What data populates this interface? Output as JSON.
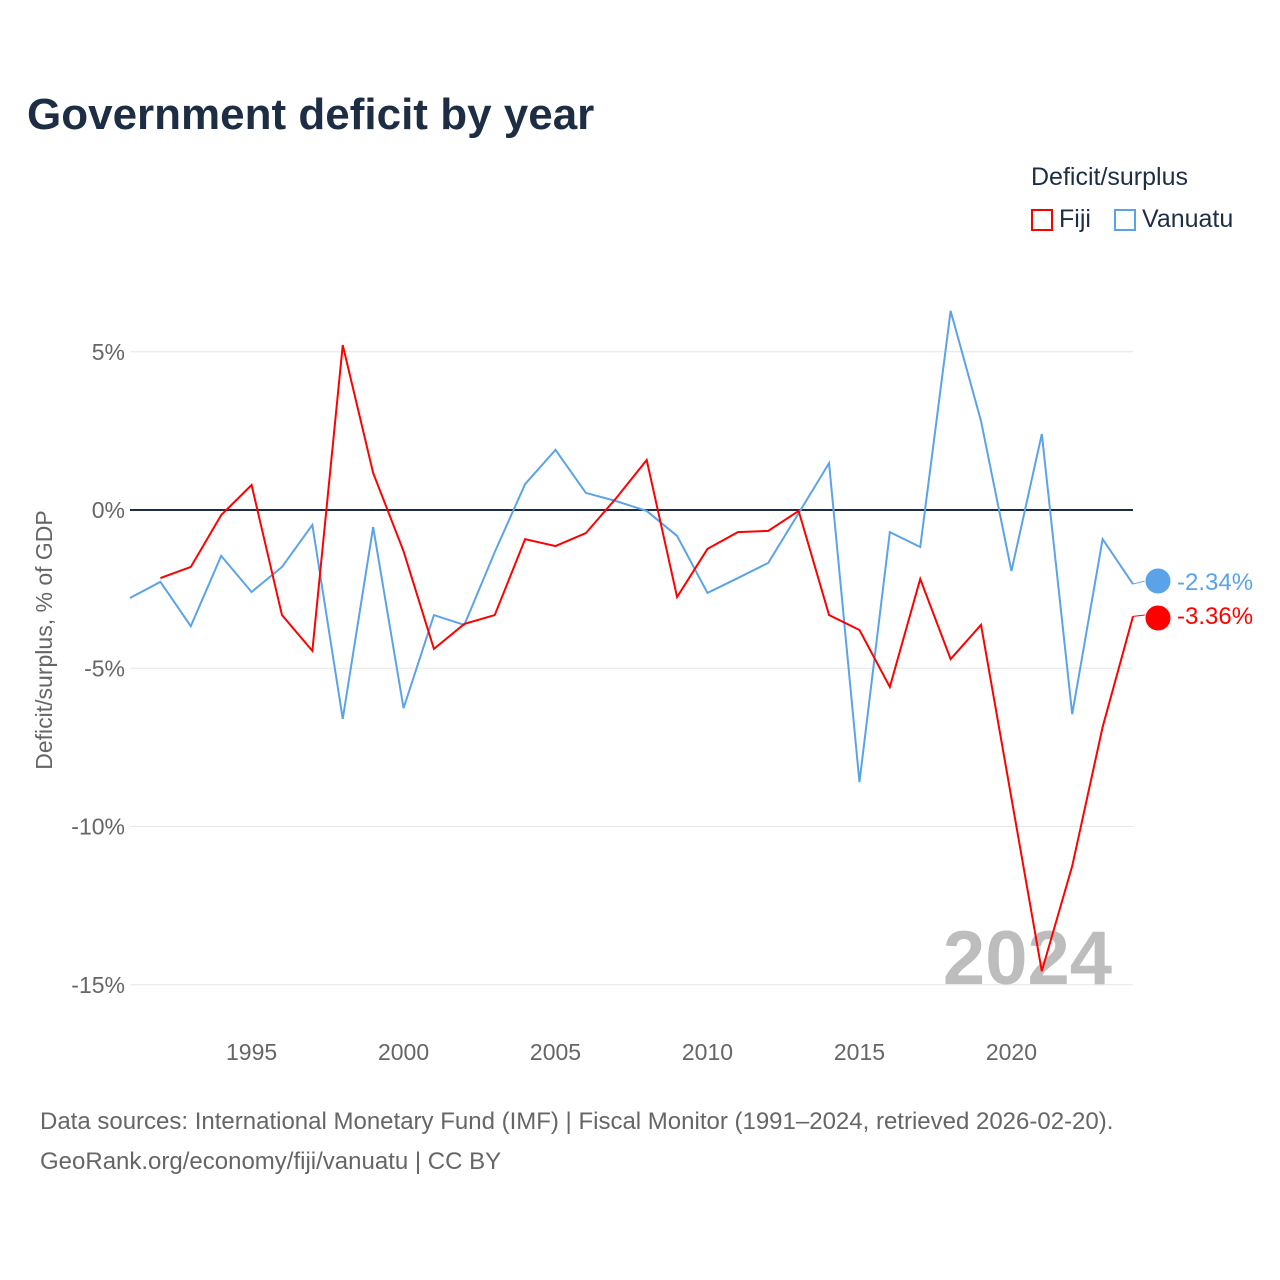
{
  "title": "Government deficit by year",
  "legend": {
    "title": "Deficit/surplus",
    "items": [
      "Fiji",
      "Vanuatu"
    ]
  },
  "footer": {
    "line1": "Data sources: International Monetary Fund (IMF) | Fiscal Monitor (1991–2024, retrieved 2026-02-20).",
    "line2": "GeoRank.org/economy/fiji/vanuatu | CC BY"
  },
  "chart_data": {
    "type": "line",
    "title": "Government deficit by year",
    "xlabel": "",
    "ylabel": "Deficit/surplus, % of GDP",
    "xlim": [
      1991,
      2024
    ],
    "ylim": [
      -16,
      7
    ],
    "x_ticks": [
      1995,
      2000,
      2005,
      2010,
      2015,
      2020
    ],
    "y_ticks": [
      5,
      0,
      -5,
      -10,
      -15
    ],
    "y_tick_labels": [
      "5%",
      "0%",
      "-5%",
      "-10%",
      "-15%"
    ],
    "year_label": "2024",
    "series": [
      {
        "name": "Fiji",
        "color": "#ff0000",
        "end_label": "-3.36%",
        "start": 1992,
        "values": [
          -2.15,
          -1.8,
          -0.16,
          0.79,
          -3.32,
          -4.45,
          5.21,
          1.17,
          -1.3,
          -4.39,
          -3.6,
          -3.32,
          -0.92,
          -1.14,
          -0.73,
          0.38,
          1.58,
          -2.75,
          -1.23,
          -0.7,
          -0.66,
          -0.03,
          -3.32,
          -3.79,
          -5.59,
          -2.18,
          -4.71,
          -3.63,
          -9.1,
          -14.57,
          -11.25,
          -6.86,
          -3.36
        ]
      },
      {
        "name": "Vanuatu",
        "color": "#5ba3e8",
        "end_label": "-2.34%",
        "start": 1991,
        "values": [
          -2.78,
          -2.27,
          -3.67,
          -1.45,
          -2.59,
          -1.8,
          -0.47,
          -6.6,
          -0.54,
          -6.26,
          -3.32,
          -3.63,
          -1.33,
          0.82,
          1.9,
          0.54,
          0.28,
          -0.03,
          -0.82,
          -2.62,
          -2.15,
          -1.67,
          -0.1,
          1.48,
          -8.6,
          -0.7,
          -1.17,
          6.29,
          2.81,
          -1.93,
          2.4,
          -6.45,
          -0.92,
          -2.34
        ]
      }
    ]
  }
}
